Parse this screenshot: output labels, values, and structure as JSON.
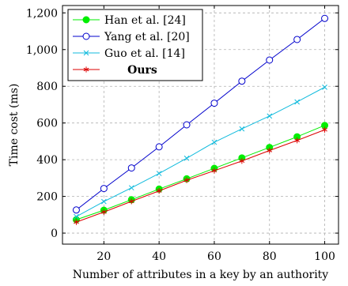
{
  "chart_data": {
    "type": "line",
    "title": "",
    "xlabel": "Number of attributes in a key by an authority",
    "ylabel": "Time cost (ms)",
    "xlim": [
      5,
      105
    ],
    "ylim": [
      -60,
      1240
    ],
    "xticks": [
      20,
      40,
      60,
      80,
      100
    ],
    "xtick_labels": [
      "20",
      "40",
      "60",
      "80",
      "100"
    ],
    "yticks": [
      0,
      200,
      400,
      600,
      800,
      1000,
      1200
    ],
    "ytick_labels": [
      "0",
      "200",
      "400",
      "600",
      "800",
      "1,000",
      "1,200"
    ],
    "grid": "dashed",
    "legend_position": "top-left",
    "x": [
      10,
      20,
      30,
      40,
      50,
      60,
      70,
      80,
      90,
      100
    ],
    "series": [
      {
        "name": "Han et al. [24]",
        "color": "#00ee00",
        "marker": "filled-circle",
        "bold": false,
        "values": [
          73,
          125,
          182,
          240,
          296,
          353,
          410,
          467,
          525,
          587
        ]
      },
      {
        "name": "Yang et al. [20]",
        "color": "#0000cc",
        "marker": "open-circle",
        "bold": false,
        "values": [
          126,
          243,
          355,
          470,
          590,
          708,
          828,
          943,
          1055,
          1170
        ]
      },
      {
        "name": "Guo et al. [14]",
        "color": "#11bbdd",
        "marker": "x",
        "bold": false,
        "values": [
          90,
          172,
          247,
          325,
          408,
          495,
          568,
          638,
          715,
          795
        ]
      },
      {
        "name": "Ours",
        "color": "#dd0000",
        "marker": "star",
        "bold": true,
        "values": [
          60,
          115,
          173,
          230,
          288,
          340,
          393,
          450,
          505,
          563
        ]
      }
    ]
  }
}
